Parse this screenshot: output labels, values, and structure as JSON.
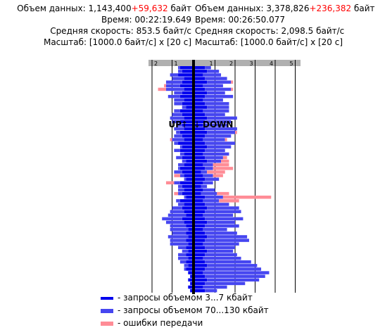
{
  "upload": {
    "title": "UP",
    "arrow": "↑",
    "volume_label": "Объем данных:",
    "volume_value": "1,143,400",
    "volume_extra": "+59,632",
    "volume_unit": "байт",
    "time_label": "Время:",
    "time_value": "00:22:19.649",
    "speed_label": "Средняя скорость:",
    "speed_value": "853.5 байт/с",
    "scale_label": "Масштаб:",
    "scale_value": "[1000.0 байт/с] x [20 с]"
  },
  "download": {
    "title": "DOWN",
    "arrow": "↓",
    "volume_label": "Объем данных:",
    "volume_value": "3,378,826",
    "volume_extra": "+236,382",
    "volume_unit": "байт",
    "time_label": "Время:",
    "time_value": "00:26:50.077",
    "speed_label": "Средняя скорость:",
    "speed_value": "2,098.5 байт/с",
    "scale_label": "Масштаб:",
    "scale_value": "[1000.0 байт/с] x [20 с]"
  },
  "legend": {
    "small_requests": "- запросы объемом 3...7 кбайт",
    "large_requests": "- запросы объемом 70...130 кбайт",
    "errors": "- ошибки передачи"
  },
  "colors": {
    "small": "#0000ee",
    "large": "#4646f0",
    "error": "#ff8c96",
    "axis_bg": "#b0b0b0",
    "grid": "#000000"
  },
  "chart_data": {
    "type": "bar",
    "unit": "1000.0 байт/с",
    "interval": "20 с",
    "up": {
      "ticks": [
        "2",
        "1"
      ],
      "xlim": [
        0,
        2
      ],
      "rows": [
        {
          "small": 0.6,
          "large": 0.1,
          "error": 0
        },
        {
          "small": 0.5,
          "large": 0.2,
          "error": 0
        },
        {
          "small": 0.7,
          "large": 0.4,
          "error": 0
        },
        {
          "small": 0.4,
          "large": 0.6,
          "error": 0
        },
        {
          "small": 0.5,
          "large": 0.8,
          "error": 0
        },
        {
          "small": 0.6,
          "large": 0.7,
          "error": 0.1
        },
        {
          "small": 0.4,
          "large": 0.9,
          "error": 0.4
        },
        {
          "small": 0.5,
          "large": 0.4,
          "error": 0
        },
        {
          "small": 0.6,
          "large": 0.6,
          "error": 0
        },
        {
          "small": 0.4,
          "large": 0.5,
          "error": 0
        },
        {
          "small": 0.5,
          "large": 0.4,
          "error": 0
        },
        {
          "small": 0.3,
          "large": 0.2,
          "error": 0
        },
        {
          "small": 0.6,
          "large": 0.3,
          "error": 0
        },
        {
          "small": 0.5,
          "large": 0.5,
          "error": 0
        },
        {
          "small": 0.4,
          "large": 0.7,
          "error": 0
        },
        {
          "small": 0.6,
          "large": 0.4,
          "error": 0
        },
        {
          "small": 0.5,
          "large": 0.3,
          "error": 0
        },
        {
          "small": 0.4,
          "large": 0.5,
          "error": 0
        },
        {
          "small": 0.6,
          "large": 0.2,
          "error": 0
        },
        {
          "small": 0.5,
          "large": 0.4,
          "error": 0
        },
        {
          "small": 0.4,
          "large": 0.6,
          "error": 0.1
        },
        {
          "small": 0.7,
          "large": 0.2,
          "error": 0
        },
        {
          "small": 0.5,
          "large": 0.1,
          "error": 0
        },
        {
          "small": 0.6,
          "large": 0.3,
          "error": 0
        },
        {
          "small": 0.4,
          "large": 0.2,
          "error": 0
        },
        {
          "small": 0.5,
          "large": 0.3,
          "error": 0
        },
        {
          "small": 0.3,
          "large": 0.2,
          "error": 0
        },
        {
          "small": 0.4,
          "large": 0.3,
          "error": 0
        },
        {
          "small": 0.6,
          "large": 0.1,
          "error": 0
        },
        {
          "small": 0.5,
          "large": 0.4,
          "error": 0
        },
        {
          "small": 0.4,
          "large": 0.2,
          "error": 0.3
        },
        {
          "small": 0.3,
          "large": 0.1,
          "error": 0
        },
        {
          "small": 0.6,
          "large": 0.3,
          "error": 0.4
        },
        {
          "small": 0.5,
          "large": 0.2,
          "error": 0
        },
        {
          "small": 0.4,
          "large": 0.3,
          "error": 0
        },
        {
          "small": 0.5,
          "large": 0.2,
          "error": 0.2
        },
        {
          "small": 0.3,
          "large": 0.1,
          "error": 0
        },
        {
          "small": 0.6,
          "large": 0.2,
          "error": 0
        },
        {
          "small": 0.4,
          "large": 0.3,
          "error": 0
        },
        {
          "small": 0.5,
          "large": 0.5,
          "error": 0
        },
        {
          "small": 0.4,
          "large": 0.7,
          "error": 0
        },
        {
          "small": 0.3,
          "large": 0.9,
          "error": 0
        },
        {
          "small": 0.5,
          "large": 1.0,
          "error": 0
        },
        {
          "small": 0.4,
          "large": 0.9,
          "error": 0
        },
        {
          "small": 0.3,
          "large": 0.8,
          "error": 0
        },
        {
          "small": 0.2,
          "large": 0.9,
          "error": 0
        },
        {
          "small": 0.3,
          "large": 0.7,
          "error": 0
        },
        {
          "small": 0.2,
          "large": 1.0,
          "error": 0
        },
        {
          "small": 0.3,
          "large": 0.8,
          "error": 0
        },
        {
          "small": 0.2,
          "large": 0.9,
          "error": 0
        },
        {
          "small": 0.3,
          "large": 0.4,
          "error": 0
        },
        {
          "small": 0.2,
          "large": 0.3,
          "error": 0
        },
        {
          "small": 0.3,
          "large": 0.4,
          "error": 0
        },
        {
          "small": 0.2,
          "large": 0.5,
          "error": 0
        },
        {
          "small": 0.3,
          "large": 0.3,
          "error": 0
        },
        {
          "small": 0.2,
          "large": 0.2,
          "error": 0
        },
        {
          "small": 0.3,
          "large": 0.1,
          "error": 0
        },
        {
          "small": 0.2,
          "large": 0,
          "error": 0
        },
        {
          "small": 0.1,
          "large": 0,
          "error": 0
        },
        {
          "small": 0.2,
          "large": 0,
          "error": 0
        },
        {
          "small": 0.1,
          "large": 0,
          "error": 0
        },
        {
          "small": 0.2,
          "large": 0,
          "error": 0
        },
        {
          "small": 0.1,
          "large": 0,
          "error": 0
        }
      ]
    },
    "down": {
      "ticks": [
        "1",
        "2",
        "3",
        "4",
        "5"
      ],
      "xlim": [
        0,
        5
      ],
      "rows": [
        {
          "small": 0.5,
          "large": 0.3,
          "error": 0
        },
        {
          "small": 0.6,
          "large": 0.6,
          "error": 0
        },
        {
          "small": 0.4,
          "large": 0.9,
          "error": 0
        },
        {
          "small": 0.5,
          "large": 1.1,
          "error": 0
        },
        {
          "small": 0.6,
          "large": 1.2,
          "error": 0.1
        },
        {
          "small": 0.4,
          "large": 1.0,
          "error": 0
        },
        {
          "small": 0.5,
          "large": 1.3,
          "error": 0.1
        },
        {
          "small": 0.6,
          "large": 0.9,
          "error": 0
        },
        {
          "small": 0.5,
          "large": 1.4,
          "error": 0
        },
        {
          "small": 0.4,
          "large": 1.0,
          "error": 0
        },
        {
          "small": 0.5,
          "large": 1.2,
          "error": 0
        },
        {
          "small": 0.6,
          "large": 1.1,
          "error": 0
        },
        {
          "small": 0.4,
          "large": 1.3,
          "error": 0
        },
        {
          "small": 0.5,
          "large": 1.0,
          "error": 0
        },
        {
          "small": 0.6,
          "large": 1.5,
          "error": 0
        },
        {
          "small": 0.5,
          "large": 1.3,
          "error": 0
        },
        {
          "small": 0.4,
          "large": 1.2,
          "error": 0
        },
        {
          "small": 0.5,
          "large": 1.6,
          "error": 0
        },
        {
          "small": 0.6,
          "large": 1.4,
          "error": 0.1
        },
        {
          "small": 0.5,
          "large": 1.3,
          "error": 0
        },
        {
          "small": 0.4,
          "large": 1.1,
          "error": 0.1
        },
        {
          "small": 0.5,
          "large": 1.5,
          "error": 0
        },
        {
          "small": 0.6,
          "large": 1.2,
          "error": 0
        },
        {
          "small": 0.5,
          "large": 1.0,
          "error": 0
        },
        {
          "small": 0.4,
          "large": 1.3,
          "error": 0
        },
        {
          "small": 0.5,
          "large": 0.9,
          "error": 0.2
        },
        {
          "small": 0.6,
          "large": 0.7,
          "error": 0.4
        },
        {
          "small": 0.4,
          "large": 0.5,
          "error": 0.8
        },
        {
          "small": 0.5,
          "large": 0.4,
          "error": 1.0
        },
        {
          "small": 0.3,
          "large": 0.3,
          "error": 0.9
        },
        {
          "small": 0.4,
          "large": 0.5,
          "error": 0.5
        },
        {
          "small": 0.5,
          "large": 0.7,
          "error": 0
        },
        {
          "small": 0.4,
          "large": 0.5,
          "error": 0
        },
        {
          "small": 0.3,
          "large": 0.3,
          "error": 0
        },
        {
          "small": 0.4,
          "large": 0.6,
          "error": 0
        },
        {
          "small": 0.3,
          "large": 0.8,
          "error": 0.6
        },
        {
          "small": 0.5,
          "large": 0.9,
          "error": 2.4
        },
        {
          "small": 0.4,
          "large": 0.8,
          "error": 1.0
        },
        {
          "small": 0.5,
          "large": 1.2,
          "error": 0
        },
        {
          "small": 0.6,
          "large": 1.6,
          "error": 0
        },
        {
          "small": 0.5,
          "large": 1.8,
          "error": 0
        },
        {
          "small": 0.4,
          "large": 1.5,
          "error": 0
        },
        {
          "small": 0.5,
          "large": 1.9,
          "error": 0
        },
        {
          "small": 0.6,
          "large": 1.4,
          "error": 0
        },
        {
          "small": 0.5,
          "large": 1.7,
          "error": 0
        },
        {
          "small": 0.4,
          "large": 1.2,
          "error": 0
        },
        {
          "small": 0.5,
          "large": 1.6,
          "error": 0
        },
        {
          "small": 0.6,
          "large": 2.0,
          "error": 0
        },
        {
          "small": 0.5,
          "large": 2.2,
          "error": 0
        },
        {
          "small": 0.4,
          "large": 1.8,
          "error": 0
        },
        {
          "small": 0.5,
          "large": 1.5,
          "error": 0
        },
        {
          "small": 0.6,
          "large": 1.3,
          "error": 0
        },
        {
          "small": 0.5,
          "large": 1.6,
          "error": 0
        },
        {
          "small": 0.4,
          "large": 1.9,
          "error": 0
        },
        {
          "small": 0.5,
          "large": 2.3,
          "error": 0
        },
        {
          "small": 0.6,
          "large": 2.5,
          "error": 0
        },
        {
          "small": 0.5,
          "large": 2.8,
          "error": 0
        },
        {
          "small": 0.4,
          "large": 3.3,
          "error": 0
        },
        {
          "small": 0.5,
          "large": 3.0,
          "error": 0
        },
        {
          "small": 0.6,
          "large": 2.6,
          "error": 0
        },
        {
          "small": 0.5,
          "large": 2.0,
          "error": 0
        },
        {
          "small": 0.4,
          "large": 1.2,
          "error": 0
        },
        {
          "small": 0.5,
          "large": 0.6,
          "error": 0
        }
      ]
    }
  }
}
